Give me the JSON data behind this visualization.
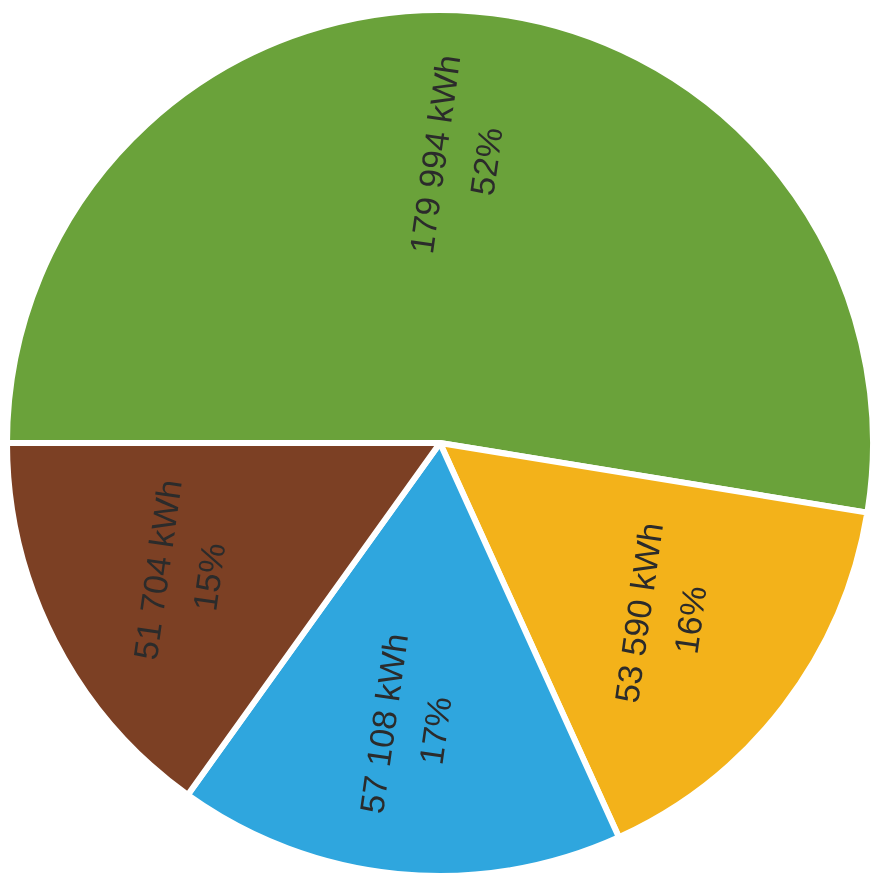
{
  "chart_data": {
    "type": "pie",
    "categories": [
      null,
      null,
      null,
      null
    ],
    "values": [
      179994,
      53590,
      57108,
      51704
    ],
    "colors": [
      "#6aa23a",
      "#f3b21a",
      "#2fa6de",
      "#7c4024"
    ],
    "value_labels": [
      "179 994 kWh\n52%",
      "53 590 kWh\n16%",
      "57 108 kWh\n17%",
      "51 704 kWh\n15%"
    ],
    "legend": false
  }
}
